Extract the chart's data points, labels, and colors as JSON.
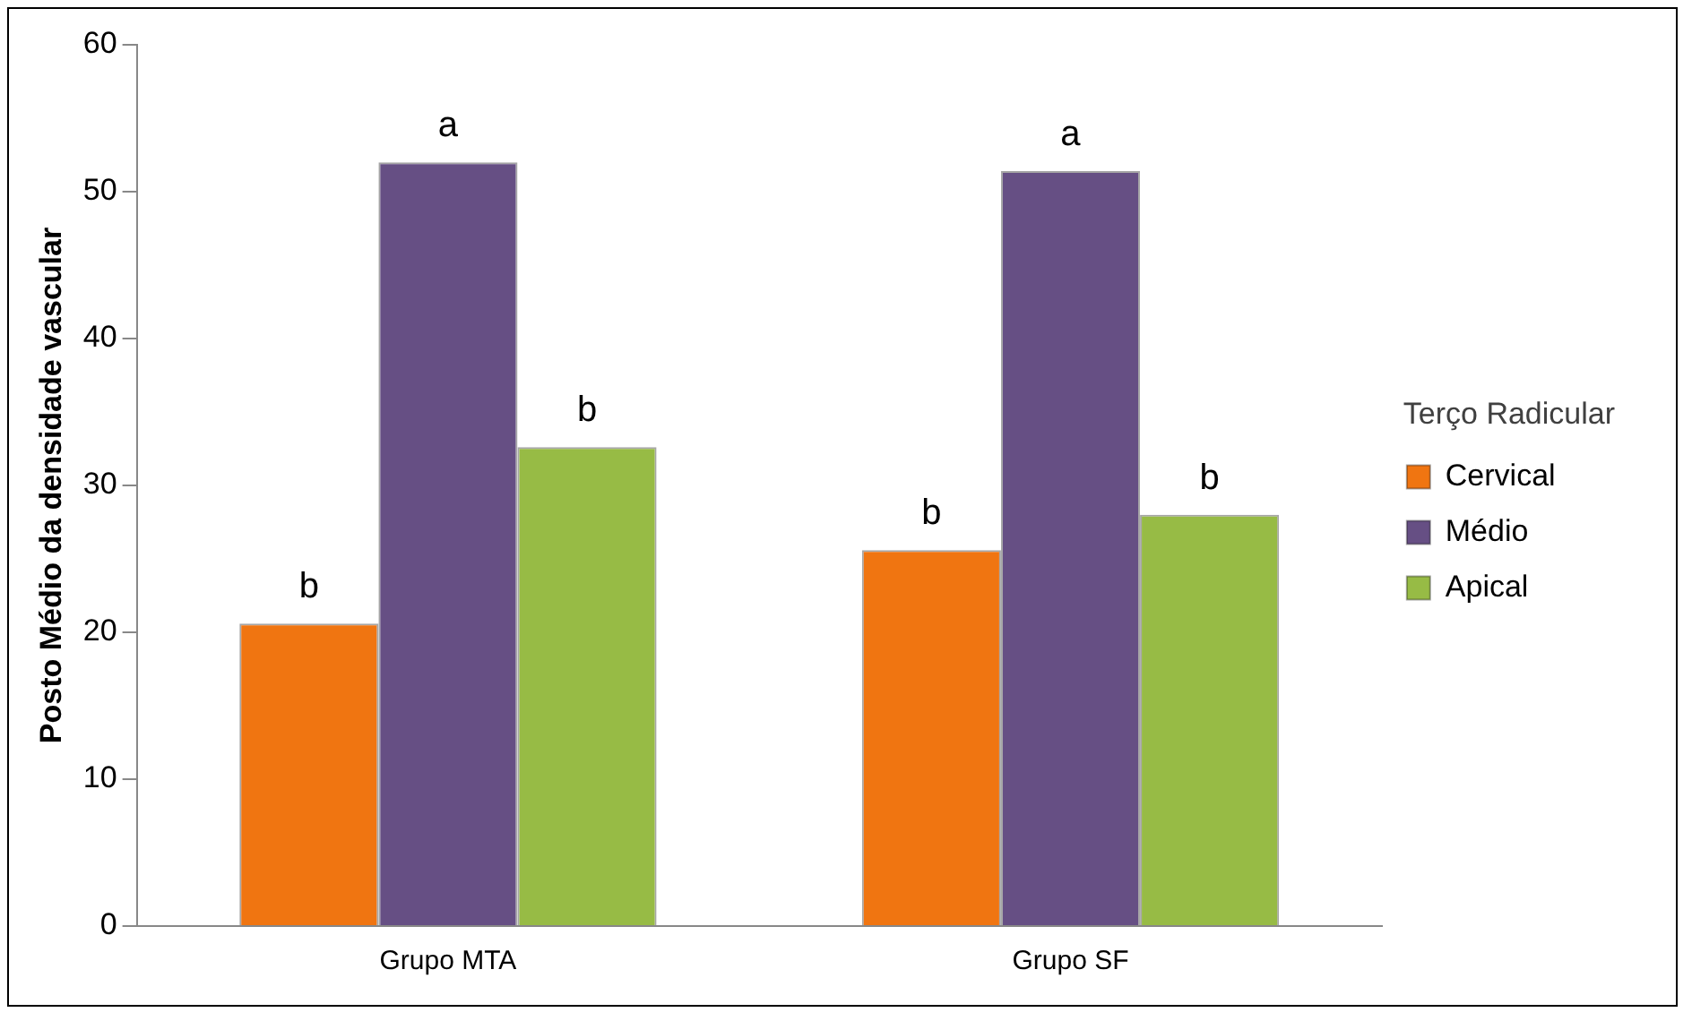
{
  "chart_data": {
    "type": "bar",
    "ylabel": "Posto Médio da densidade vascular",
    "legend_title": "Terço Radicular",
    "legend": "right",
    "grid": false,
    "categories": [
      "Grupo MTA",
      "Grupo SF"
    ],
    "ylim": [
      0,
      60
    ],
    "yticks": [
      0,
      10,
      20,
      30,
      40,
      50,
      60
    ],
    "series": [
      {
        "name": "Cervical",
        "color": "#f07511",
        "values": [
          20.6,
          25.6
        ],
        "value_labels": [
          "b",
          "b"
        ]
      },
      {
        "name": "Médio",
        "color": "#664f84",
        "values": [
          52.0,
          51.4
        ],
        "value_labels": [
          "a",
          "a"
        ]
      },
      {
        "name": "Apical",
        "color": "#97bb45",
        "values": [
          32.6,
          28.0
        ],
        "value_labels": [
          "b",
          "b"
        ]
      }
    ]
  }
}
